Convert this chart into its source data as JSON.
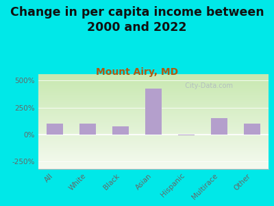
{
  "title": "Change in per capita income between\n2000 and 2022",
  "subtitle": "Mount Airy, MD",
  "categories": [
    "All",
    "White",
    "Black",
    "Asian",
    "Hispanic",
    "Multirace",
    "Other"
  ],
  "values": [
    100,
    100,
    75,
    425,
    -10,
    150,
    100
  ],
  "bar_color": "#b49fcc",
  "title_fontsize": 12.5,
  "subtitle_color": "#b05a10",
  "subtitle_fontsize": 10,
  "background_outer": "#00e8e8",
  "plot_bg_top": "#c8e8b0",
  "plot_bg_bottom": "#f5faf0",
  "yticks": [
    -250,
    0,
    250,
    500
  ],
  "ylim": [
    -320,
    560
  ],
  "watermark": "  City-Data.com"
}
